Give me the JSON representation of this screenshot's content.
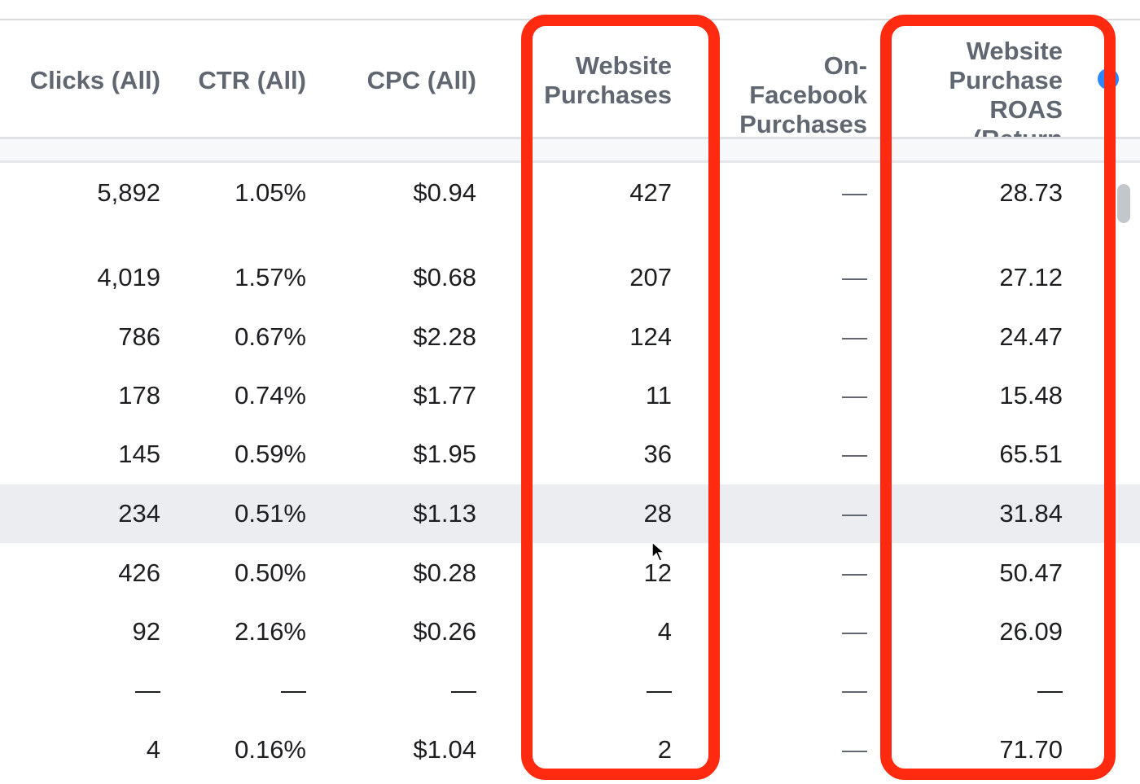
{
  "columns": {
    "clicks": "Clicks (All)",
    "ctr": "CTR (All)",
    "cpc": "CPC (All)",
    "website_purchases": "Website\nPurchases",
    "on_facebook_purchases": "On-Facebook\nPurchases",
    "roas": "Website\nPurchase\nROAS (Return"
  },
  "rows": [
    {
      "clicks": "5,892",
      "ctr": "1.05%",
      "cpc": "$0.94",
      "website_purchases": "427",
      "on_facebook_purchases": "—",
      "roas": "28.73"
    },
    {
      "clicks": "4,019",
      "ctr": "1.57%",
      "cpc": "$0.68",
      "website_purchases": "207",
      "on_facebook_purchases": "—",
      "roas": "27.12"
    },
    {
      "clicks": "786",
      "ctr": "0.67%",
      "cpc": "$2.28",
      "website_purchases": "124",
      "on_facebook_purchases": "—",
      "roas": "24.47"
    },
    {
      "clicks": "178",
      "ctr": "0.74%",
      "cpc": "$1.77",
      "website_purchases": "11",
      "on_facebook_purchases": "—",
      "roas": "15.48"
    },
    {
      "clicks": "145",
      "ctr": "0.59%",
      "cpc": "$1.95",
      "website_purchases": "36",
      "on_facebook_purchases": "—",
      "roas": "65.51"
    },
    {
      "clicks": "234",
      "ctr": "0.51%",
      "cpc": "$1.13",
      "website_purchases": "28",
      "on_facebook_purchases": "—",
      "roas": "31.84"
    },
    {
      "clicks": "426",
      "ctr": "0.50%",
      "cpc": "$0.28",
      "website_purchases": "12",
      "on_facebook_purchases": "—",
      "roas": "50.47"
    },
    {
      "clicks": "92",
      "ctr": "2.16%",
      "cpc": "$0.26",
      "website_purchases": "4",
      "on_facebook_purchases": "—",
      "roas": "26.09"
    },
    {
      "clicks": "—",
      "ctr": "—",
      "cpc": "—",
      "website_purchases": "—",
      "on_facebook_purchases": "—",
      "roas": "—"
    },
    {
      "clicks": "4",
      "ctr": "0.16%",
      "cpc": "$1.04",
      "website_purchases": "2",
      "on_facebook_purchases": "—",
      "roas": "71.70"
    }
  ],
  "colors": {
    "annotation": "#ff2a10",
    "highlight_row": "#ebedf0",
    "header_text": "#606770",
    "info_icon": "#2d88ff"
  },
  "icons": {
    "info": "info-icon",
    "cursor": "mouse-cursor-icon"
  }
}
